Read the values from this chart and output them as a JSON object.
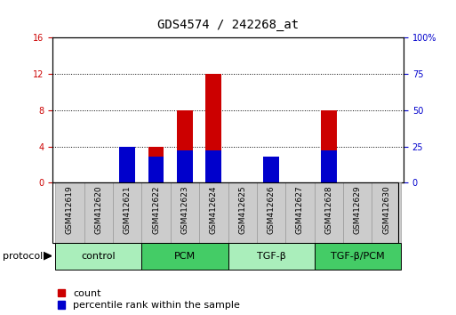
{
  "title": "GDS4574 / 242268_at",
  "samples": [
    "GSM412619",
    "GSM412620",
    "GSM412621",
    "GSM412622",
    "GSM412623",
    "GSM412624",
    "GSM412625",
    "GSM412626",
    "GSM412627",
    "GSM412628",
    "GSM412629",
    "GSM412630"
  ],
  "count_values": [
    0,
    0,
    0.5,
    4.0,
    8.0,
    12.0,
    0,
    1.5,
    0,
    8.0,
    0,
    0
  ],
  "percentile_values": [
    0,
    0,
    25,
    18,
    22,
    22,
    0,
    18,
    0,
    22,
    0,
    0
  ],
  "ylim_left": [
    0,
    16
  ],
  "ylim_right": [
    0,
    100
  ],
  "yticks_left": [
    0,
    4,
    8,
    12,
    16
  ],
  "yticks_right": [
    0,
    25,
    50,
    75,
    100
  ],
  "ytick_labels_right": [
    "0",
    "25",
    "50",
    "75",
    "100%"
  ],
  "bar_color_count": "#cc0000",
  "bar_color_percentile": "#0000cc",
  "groups": [
    {
      "label": "control",
      "start": 0,
      "end": 3,
      "color": "#aaeebb"
    },
    {
      "label": "PCM",
      "start": 3,
      "end": 6,
      "color": "#44cc66"
    },
    {
      "label": "TGF-β",
      "start": 6,
      "end": 9,
      "color": "#aaeebb"
    },
    {
      "label": "TGF-β/PCM",
      "start": 9,
      "end": 12,
      "color": "#44cc66"
    }
  ],
  "protocol_label": "protocol",
  "legend_count_label": "count",
  "legend_percentile_label": "percentile rank within the sample",
  "background_color": "#ffffff",
  "tick_label_color_left": "#cc0000",
  "tick_label_color_right": "#0000cc",
  "title_fontsize": 10,
  "tick_fontsize": 7,
  "label_fontsize": 8,
  "sample_box_color": "#cccccc",
  "sample_box_edgecolor": "#999999"
}
